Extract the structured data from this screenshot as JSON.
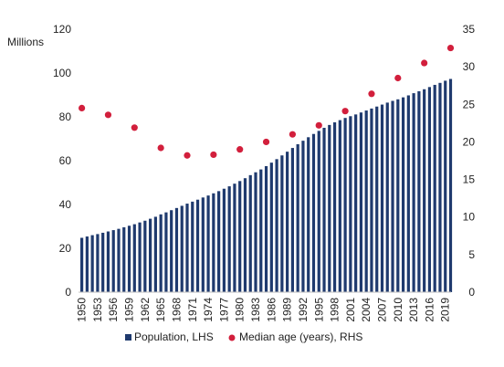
{
  "chart_data": {
    "type": "bar",
    "x": [
      1950,
      1951,
      1952,
      1953,
      1954,
      1955,
      1956,
      1957,
      1958,
      1959,
      1960,
      1961,
      1962,
      1963,
      1964,
      1965,
      1966,
      1967,
      1968,
      1969,
      1970,
      1971,
      1972,
      1973,
      1974,
      1975,
      1976,
      1977,
      1978,
      1979,
      1980,
      1981,
      1982,
      1983,
      1984,
      1985,
      1986,
      1987,
      1988,
      1989,
      1990,
      1991,
      1992,
      1993,
      1994,
      1995,
      1996,
      1997,
      1998,
      1999,
      2000,
      2001,
      2002,
      2003,
      2004,
      2005,
      2006,
      2007,
      2008,
      2009,
      2010,
      2011,
      2012,
      2013,
      2014,
      2015,
      2016,
      2017,
      2018,
      2019,
      2020
    ],
    "xtick_labels": [
      "1950",
      "1953",
      "1956",
      "1959",
      "1962",
      "1965",
      "1968",
      "1971",
      "1974",
      "1977",
      "1980",
      "1983",
      "1986",
      "1989",
      "1992",
      "1995",
      "1998",
      "2001",
      "2004",
      "2007",
      "2010",
      "2013",
      "2016",
      "2019"
    ],
    "series": [
      {
        "name": "Population, LHS",
        "axis": "left",
        "type": "bar",
        "color": "#1f3a6e",
        "values": [
          24.8,
          25.4,
          26.0,
          26.5,
          27.1,
          27.7,
          28.3,
          28.9,
          29.6,
          30.3,
          31.0,
          31.8,
          32.6,
          33.5,
          34.4,
          35.5,
          36.4,
          37.4,
          38.4,
          39.4,
          40.4,
          41.3,
          42.2,
          43.2,
          44.1,
          45.1,
          46.1,
          47.2,
          48.3,
          49.5,
          50.7,
          52.0,
          53.4,
          54.7,
          56.0,
          57.5,
          59.1,
          60.7,
          62.4,
          64.1,
          65.8,
          67.5,
          69.1,
          70.7,
          72.2,
          73.6,
          75.0,
          76.3,
          77.5,
          78.5,
          79.5,
          80.3,
          81.1,
          82.0,
          82.9,
          83.8,
          84.7,
          85.6,
          86.5,
          87.3,
          88.0,
          88.9,
          89.8,
          90.8,
          91.7,
          92.6,
          93.6,
          94.6,
          95.5,
          96.5,
          97.3
        ]
      },
      {
        "name": "Median age (years), RHS",
        "axis": "right",
        "type": "scatter",
        "color": "#d21f3c",
        "x": [
          1950,
          1955,
          1960,
          1965,
          1970,
          1975,
          1980,
          1985,
          1990,
          1995,
          2000,
          2005,
          2010,
          2015,
          2020
        ],
        "values": [
          24.5,
          23.6,
          21.9,
          19.2,
          18.2,
          18.3,
          19.0,
          20.0,
          21.0,
          22.2,
          24.1,
          26.4,
          28.5,
          30.5,
          32.5
        ]
      }
    ],
    "left_axis": {
      "label": "Millions",
      "ylim": [
        0,
        120
      ],
      "ticks": [
        "0",
        "20",
        "40",
        "60",
        "80",
        "100",
        "120"
      ]
    },
    "right_axis": {
      "ylim": [
        0,
        35
      ],
      "ticks": [
        "0",
        "5",
        "10",
        "15",
        "20",
        "25",
        "30",
        "35"
      ]
    },
    "grid": false,
    "legend_position": "bottom"
  }
}
